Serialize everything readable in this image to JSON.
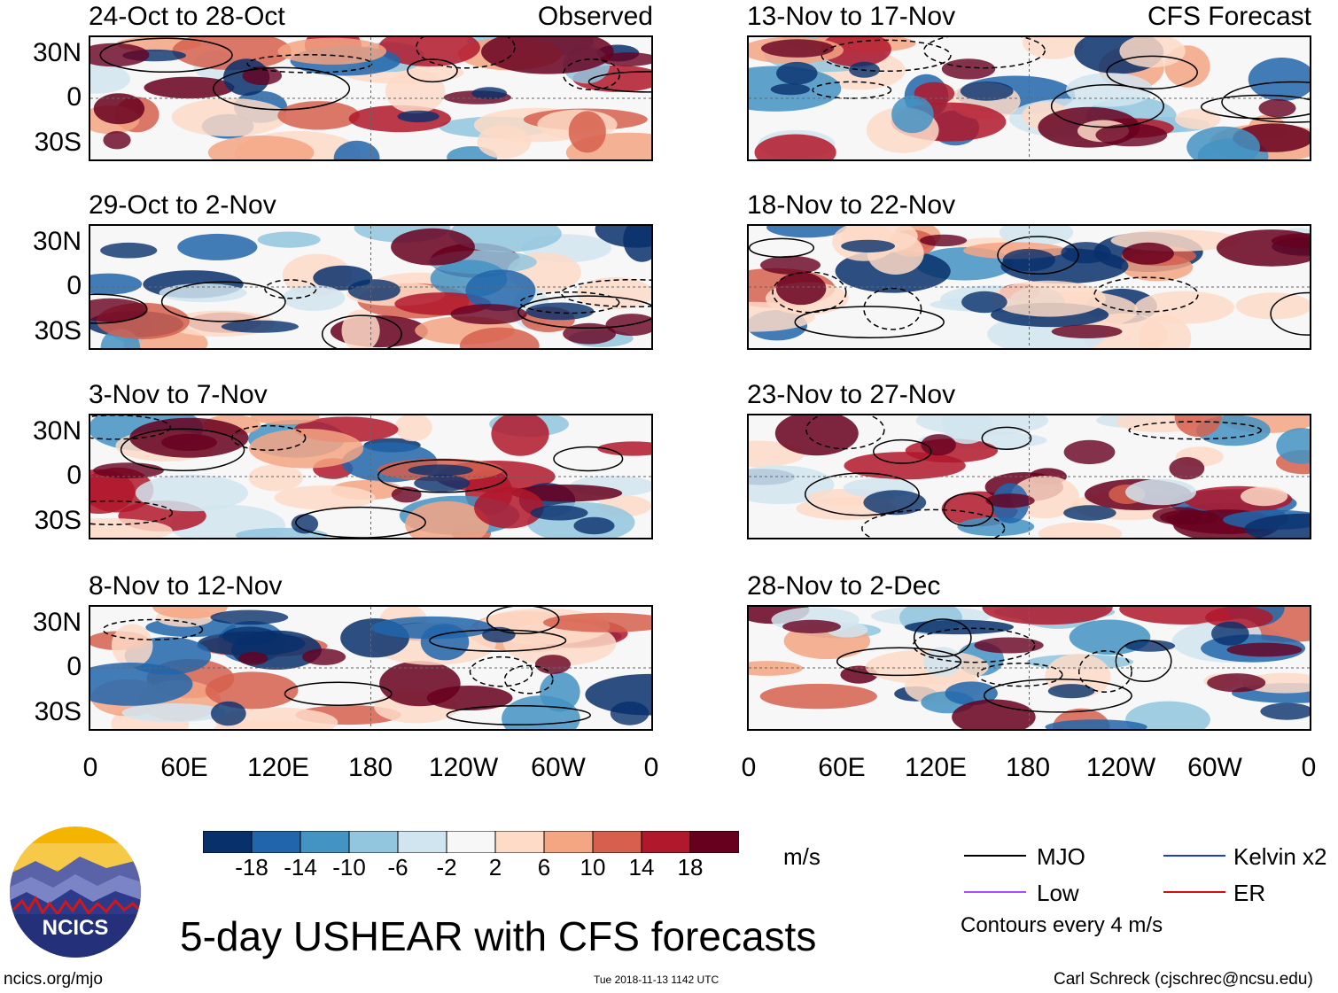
{
  "figure": {
    "main_title": "5-day USHEAR with CFS forecasts",
    "units": "m/s",
    "contour_note": "Contours every 4 m/s",
    "left_footer": "ncics.org/mjo",
    "center_footer": "Tue 2018-11-13 1142 UTC",
    "right_footer": "Carl Schreck (cjschrec@ncsu.edu)",
    "logo_text": "NCICS"
  },
  "columns": [
    {
      "tag": "Observed"
    },
    {
      "tag": "CFS Forecast"
    }
  ],
  "panels": [
    {
      "title": "24-Oct to 28-Oct",
      "column": 0,
      "row": 0
    },
    {
      "title": "29-Oct to 2-Nov",
      "column": 0,
      "row": 1
    },
    {
      "title": "3-Nov to 7-Nov",
      "column": 0,
      "row": 2
    },
    {
      "title": "8-Nov to 12-Nov",
      "column": 0,
      "row": 3
    },
    {
      "title": "13-Nov to 17-Nov",
      "column": 1,
      "row": 0
    },
    {
      "title": "18-Nov to 22-Nov",
      "column": 1,
      "row": 1
    },
    {
      "title": "23-Nov to 27-Nov",
      "column": 1,
      "row": 2
    },
    {
      "title": "28-Nov to 2-Dec",
      "column": 1,
      "row": 3
    }
  ],
  "chart_data": {
    "type": "heatmap",
    "title": "5-day USHEAR with CFS forecasts",
    "variable": "USHEAR",
    "units": "m/s",
    "x_ticks": [
      "0",
      "60E",
      "120E",
      "180",
      "120W",
      "60W",
      "0"
    ],
    "y_ticks": [
      "30N",
      "0",
      "30S"
    ],
    "xlim": [
      0,
      360
    ],
    "ylim": [
      -40,
      40
    ],
    "colorbar": {
      "levels": [
        "-18",
        "-14",
        "-10",
        "-6",
        "-2",
        "2",
        "6",
        "10",
        "14",
        "18"
      ],
      "colors": [
        "#08306b",
        "#2166ac",
        "#4393c3",
        "#92c5de",
        "#d1e5f0",
        "#f7f7f7",
        "#fddbc7",
        "#f4a582",
        "#d6604d",
        "#b2182b",
        "#67001f"
      ]
    },
    "legend": [
      {
        "label": "MJO",
        "color": "#000000"
      },
      {
        "label": "Kelvin x2",
        "color": "#1f3fbf"
      },
      {
        "label": "Low",
        "color": "#a64dff"
      },
      {
        "label": "ER",
        "color": "#d01010"
      }
    ]
  }
}
